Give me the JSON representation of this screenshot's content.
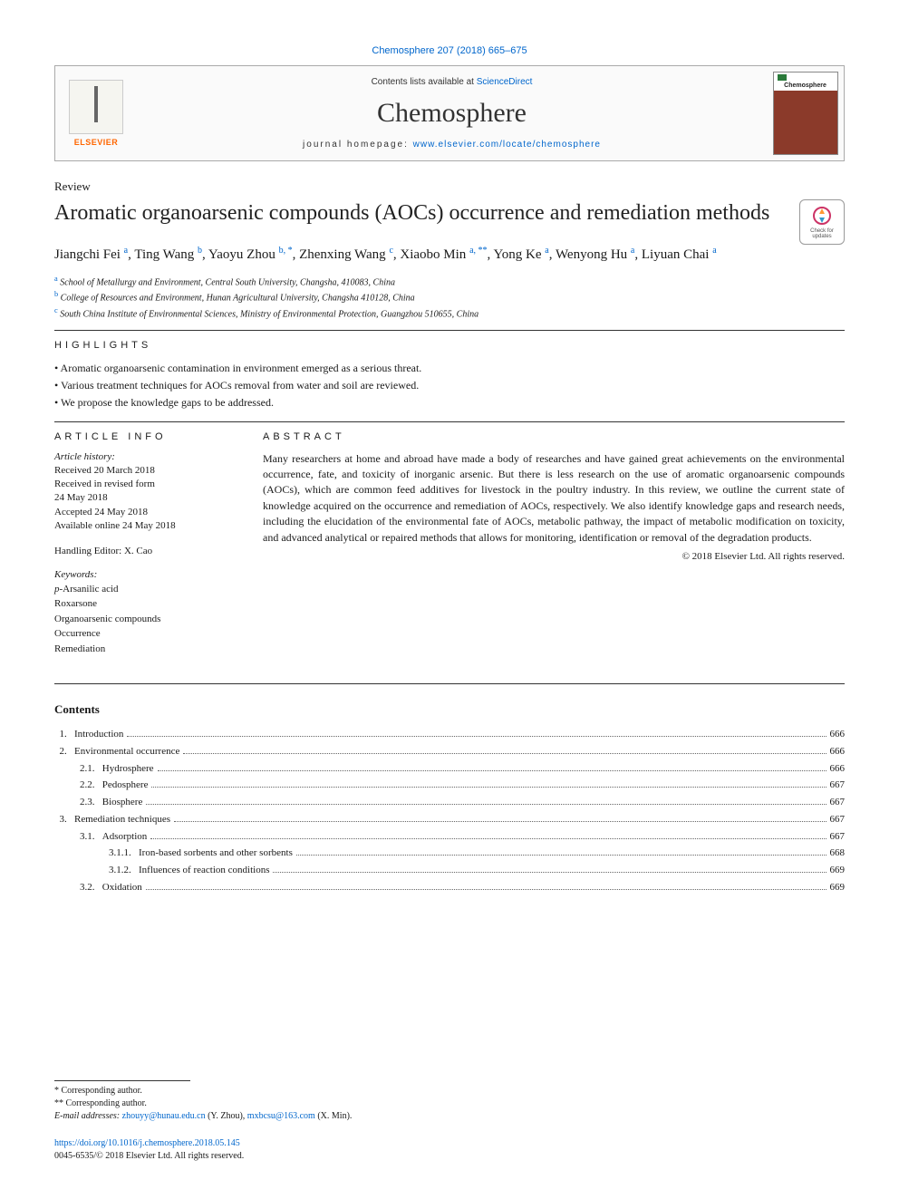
{
  "citation": "Chemosphere 207 (2018) 665–675",
  "header": {
    "contents_prefix": "Contents lists available at ",
    "contents_link": "ScienceDirect",
    "journal": "Chemosphere",
    "homepage_prefix": "journal homepage: ",
    "homepage_link": "www.elsevier.com/locate/chemosphere",
    "publisher": "ELSEVIER",
    "cover_label": "Chemosphere"
  },
  "article": {
    "type": "Review",
    "title": "Aromatic organoarsenic compounds (AOCs) occurrence and remediation methods",
    "check_updates": "Check for updates"
  },
  "authors_html": "Jiangchi Fei <sup>a</sup>, Ting Wang <sup>b</sup>, Yaoyu Zhou <sup>b, *</sup>, Zhenxing Wang <sup>c</sup>, Xiaobo Min <sup>a, **</sup>, Yong Ke <sup>a</sup>, Wenyong Hu <sup>a</sup>, Liyuan Chai <sup>a</sup>",
  "affiliations": [
    {
      "sup": "a",
      "text": " School of Metallurgy and Environment, Central South University, Changsha, 410083, China"
    },
    {
      "sup": "b",
      "text": " College of Resources and Environment, Hunan Agricultural University, Changsha 410128, China"
    },
    {
      "sup": "c",
      "text": " South China Institute of Environmental Sciences, Ministry of Environmental Protection, Guangzhou 510655, China"
    }
  ],
  "highlights": {
    "label": "HIGHLIGHTS",
    "items": [
      "Aromatic organoarsenic contamination in environment emerged as a serious threat.",
      "Various treatment techniques for AOCs removal from water and soil are reviewed.",
      "We propose the knowledge gaps to be addressed."
    ]
  },
  "article_info": {
    "label": "ARTICLE INFO",
    "history_label": "Article history:",
    "history": [
      "Received 20 March 2018",
      "Received in revised form",
      "24 May 2018",
      "Accepted 24 May 2018",
      "Available online 24 May 2018"
    ],
    "handling_editor": "Handling Editor: X. Cao",
    "keywords_label": "Keywords:",
    "keywords": [
      "p-Arsanilic acid",
      "Roxarsone",
      "Organoarsenic compounds",
      "Occurrence",
      "Remediation"
    ]
  },
  "abstract": {
    "label": "ABSTRACT",
    "text": "Many researchers at home and abroad have made a body of researches and have gained great achievements on the environmental occurrence, fate, and toxicity of inorganic arsenic. But there is less research on the use of aromatic organoarsenic compounds (AOCs), which are common feed additives for livestock in the poultry industry. In this review, we outline the current state of knowledge acquired on the occurrence and remediation of AOCs, respectively. We also identify knowledge gaps and research needs, including the elucidation of the environmental fate of AOCs, metabolic pathway, the impact of metabolic modification on toxicity, and advanced analytical or repaired methods that allows for monitoring, identification or removal of the degradation products.",
    "copyright": "© 2018 Elsevier Ltd. All rights reserved."
  },
  "contents": {
    "title": "Contents",
    "rows": [
      {
        "indent": 0,
        "num": "1.",
        "label": "Introduction",
        "page": "666"
      },
      {
        "indent": 0,
        "num": "2.",
        "label": "Environmental occurrence",
        "page": "666"
      },
      {
        "indent": 1,
        "num": "2.1.",
        "label": "Hydrosphere",
        "page": "666"
      },
      {
        "indent": 1,
        "num": "2.2.",
        "label": "Pedosphere",
        "page": "667"
      },
      {
        "indent": 1,
        "num": "2.3.",
        "label": "Biosphere",
        "page": "667"
      },
      {
        "indent": 0,
        "num": "3.",
        "label": "Remediation techniques",
        "page": "667"
      },
      {
        "indent": 1,
        "num": "3.1.",
        "label": "Adsorption",
        "page": "667"
      },
      {
        "indent": 2,
        "num": "3.1.1.",
        "label": "Iron-based sorbents and other sorbents",
        "page": "668"
      },
      {
        "indent": 2,
        "num": "3.1.2.",
        "label": "Influences of reaction conditions",
        "page": "669"
      },
      {
        "indent": 1,
        "num": "3.2.",
        "label": "Oxidation",
        "page": "669"
      }
    ]
  },
  "footer": {
    "corr1": "* Corresponding author.",
    "corr2": "** Corresponding author.",
    "email_label": "E-mail addresses: ",
    "email1": "zhouyy@hunau.edu.cn",
    "email1_name": " (Y. Zhou), ",
    "email2": "mxbcsu@163.com",
    "email2_name": " (X. Min).",
    "doi": "https://doi.org/10.1016/j.chemosphere.2018.05.145",
    "issn": "0045-6535/© 2018 Elsevier Ltd. All rights reserved."
  },
  "colors": {
    "link": "#0066cc",
    "text": "#1a1a1a",
    "elsevier_orange": "#ff6600"
  }
}
